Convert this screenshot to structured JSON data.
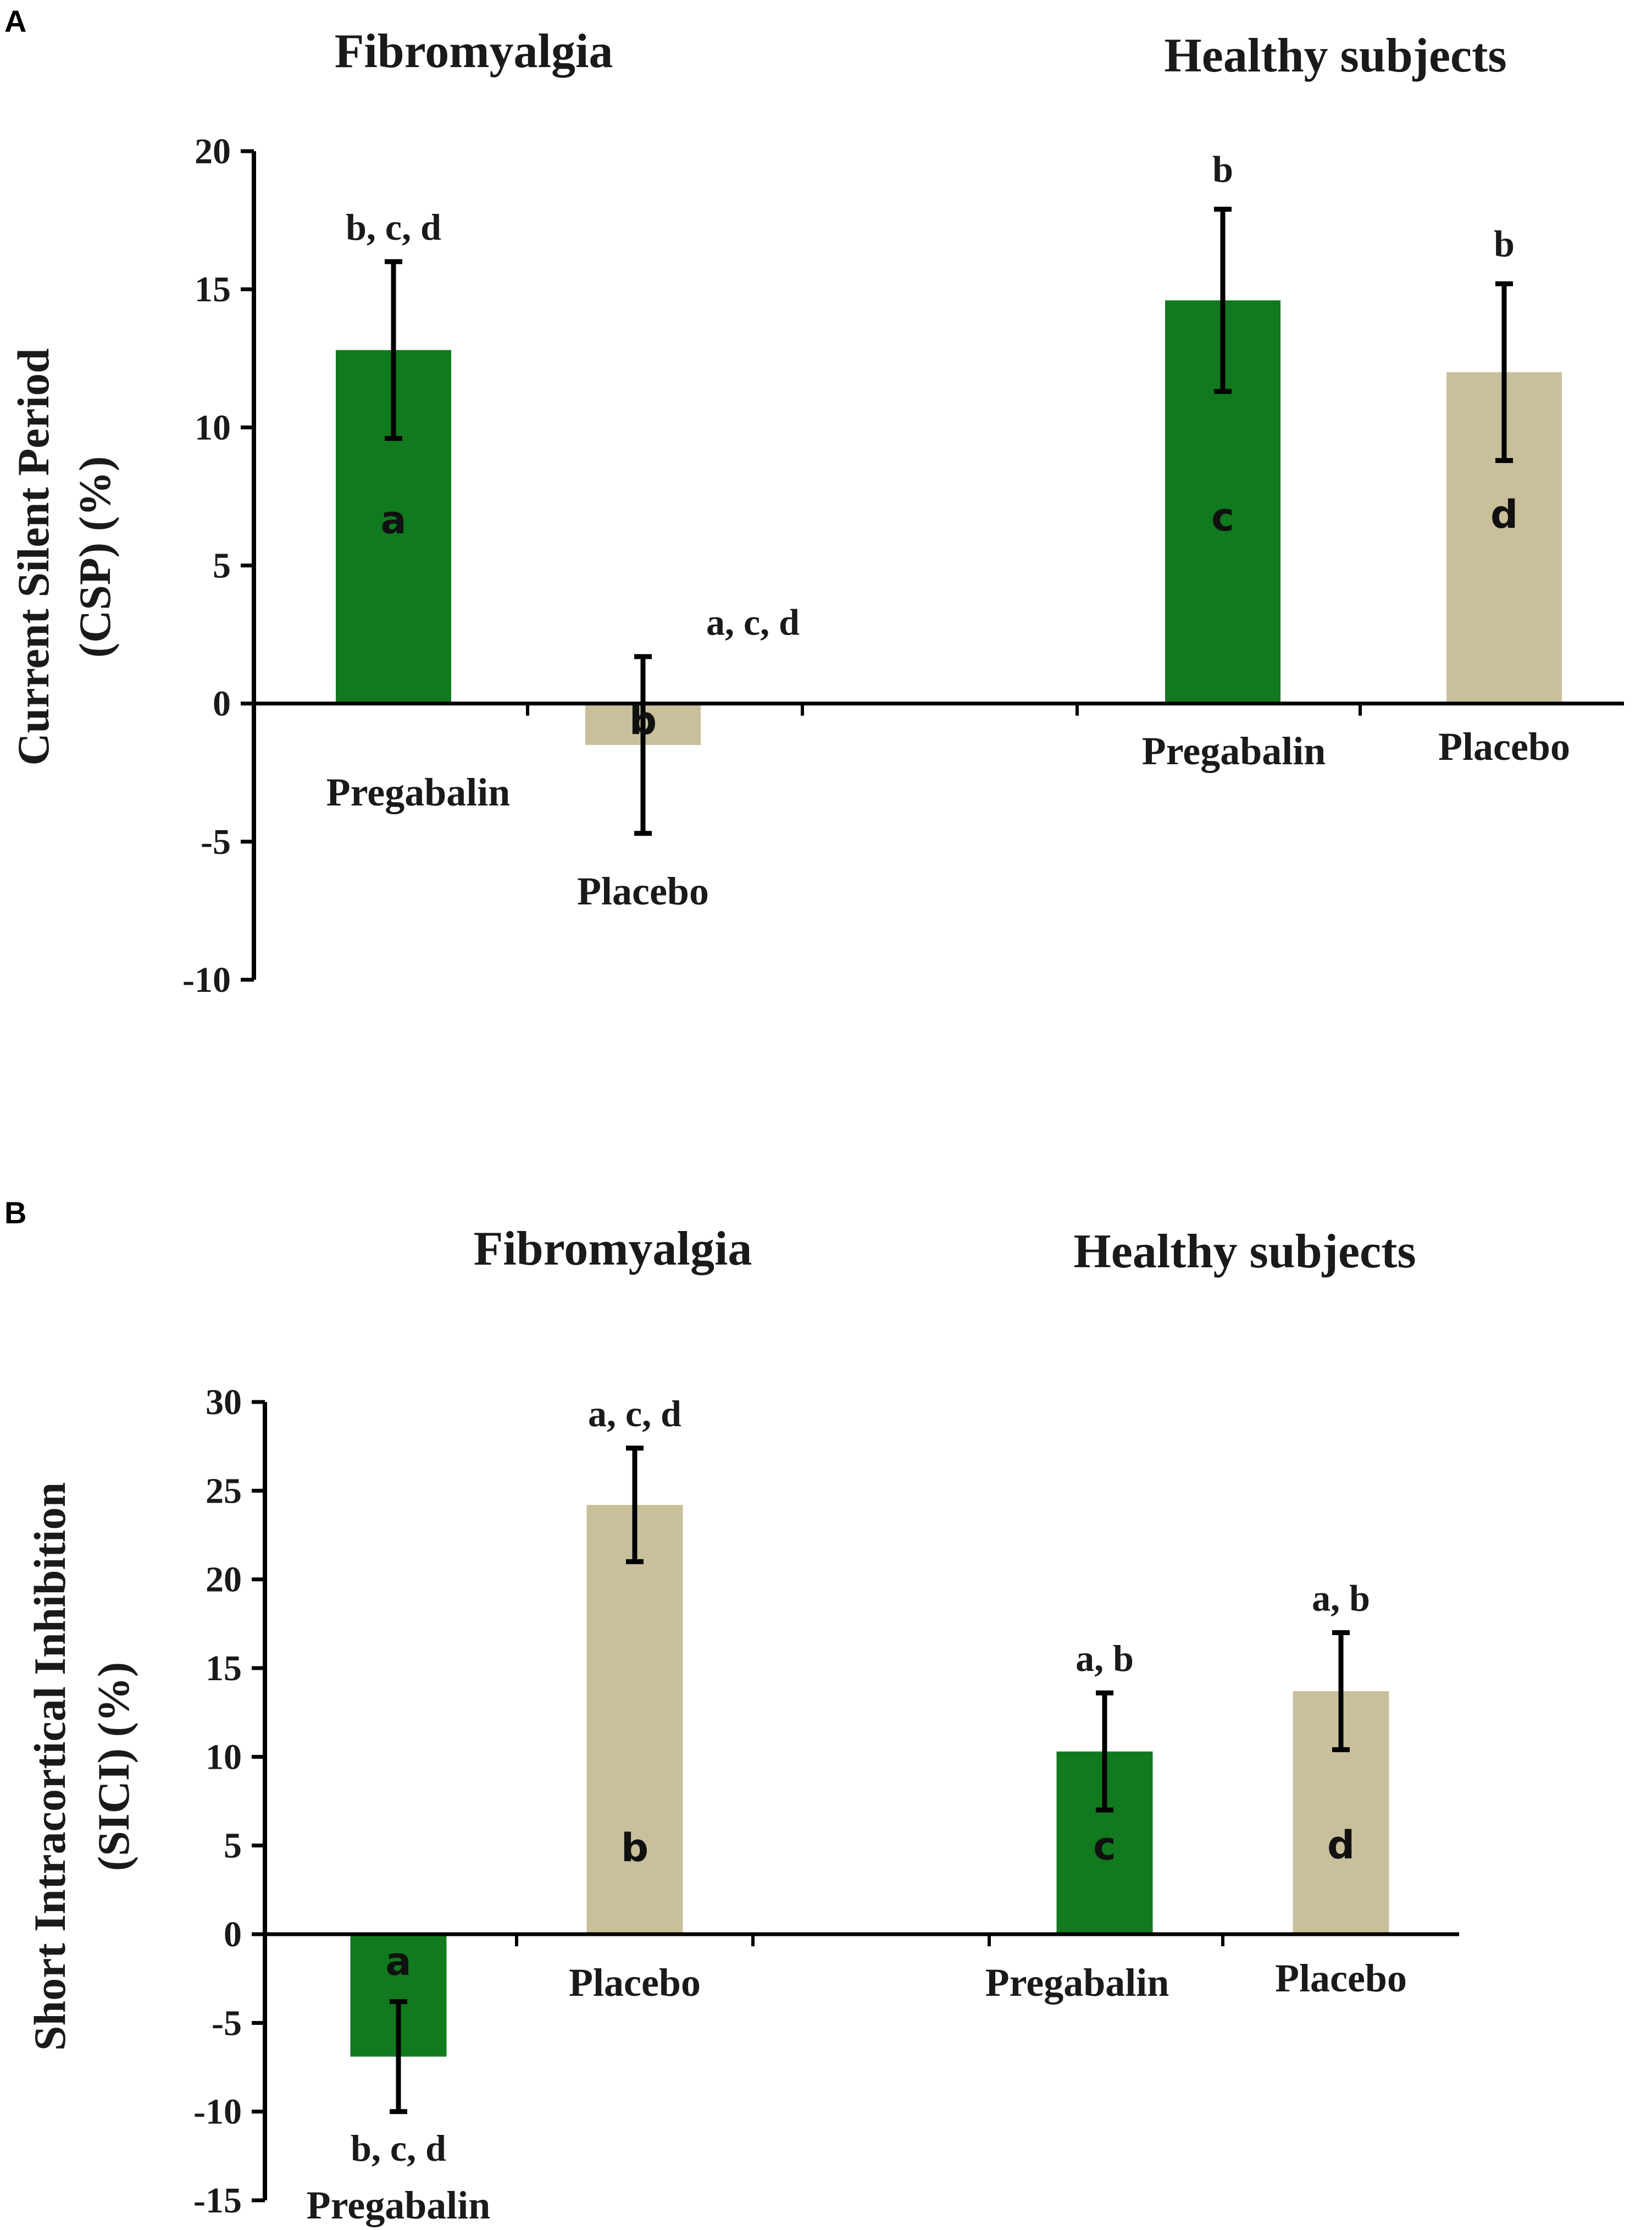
{
  "chart_data": [
    {
      "type": "bar",
      "panel": "A",
      "groups": [
        "Fibromyalgia",
        "Healthy subjects"
      ],
      "ylabel_lines": [
        "Current Silent Period",
        "(CSP) (%)"
      ],
      "ylim": [
        -10,
        20
      ],
      "yticks": [
        20,
        15,
        10,
        5,
        0,
        -5,
        -10
      ],
      "bars": [
        {
          "group": "Fibromyalgia",
          "label": "Pregabalin",
          "value": 12.8,
          "error": 3.2,
          "color": "#117a1e",
          "inner": "a",
          "sig": "b, c, d"
        },
        {
          "group": "Fibromyalgia",
          "label": "Placebo",
          "value": -1.5,
          "error": 3.2,
          "color": "#c9c09b",
          "inner": "b",
          "sig": "a, c, d"
        },
        {
          "group": "Healthy subjects",
          "label": "Pregabalin",
          "value": 14.6,
          "error": 3.3,
          "color": "#117a1e",
          "inner": "c",
          "sig": "b"
        },
        {
          "group": "Healthy subjects",
          "label": "Placebo",
          "value": 12.0,
          "error": 3.2,
          "color": "#c9c09b",
          "inner": "d",
          "sig": "b"
        }
      ]
    },
    {
      "type": "bar",
      "panel": "B",
      "groups": [
        "Fibromyalgia",
        "Healthy subjects"
      ],
      "ylabel_lines": [
        "Short Intracortical Inhibition",
        "(SICI) (%)"
      ],
      "ylim": [
        -15,
        30
      ],
      "yticks": [
        30,
        25,
        20,
        15,
        10,
        5,
        0,
        -5,
        -10,
        -15
      ],
      "bars": [
        {
          "group": "Fibromyalgia",
          "label": "Pregabalin",
          "value": -6.9,
          "error": 3.1,
          "color": "#117a1e",
          "inner": "a",
          "sig": "b, c, d"
        },
        {
          "group": "Fibromyalgia",
          "label": "Placebo",
          "value": 24.2,
          "error": 3.2,
          "color": "#c9c09b",
          "inner": "b",
          "sig": "a, c, d"
        },
        {
          "group": "Healthy subjects",
          "label": "Pregabalin",
          "value": 10.3,
          "error": 3.3,
          "color": "#117a1e",
          "inner": "c",
          "sig": "a, b"
        },
        {
          "group": "Healthy subjects",
          "label": "Placebo",
          "value": 13.7,
          "error": 3.3,
          "color": "#c9c09b",
          "inner": "d",
          "sig": "a, b"
        }
      ]
    }
  ]
}
